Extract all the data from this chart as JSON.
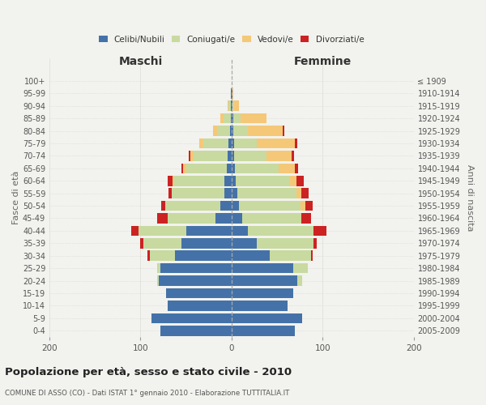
{
  "age_groups_bottom_to_top": [
    "0-4",
    "5-9",
    "10-14",
    "15-19",
    "20-24",
    "25-29",
    "30-34",
    "35-39",
    "40-44",
    "45-49",
    "50-54",
    "55-59",
    "60-64",
    "65-69",
    "70-74",
    "75-79",
    "80-84",
    "85-89",
    "90-94",
    "95-99",
    "100+"
  ],
  "birth_years_bottom_to_top": [
    "2005-2009",
    "2000-2004",
    "1995-1999",
    "1990-1994",
    "1985-1989",
    "1980-1984",
    "1975-1979",
    "1970-1974",
    "1965-1969",
    "1960-1964",
    "1955-1959",
    "1950-1954",
    "1945-1949",
    "1940-1944",
    "1935-1939",
    "1930-1934",
    "1925-1929",
    "1920-1924",
    "1915-1919",
    "1910-1914",
    "≤ 1909"
  ],
  "male": {
    "celibi": [
      78,
      88,
      70,
      72,
      80,
      78,
      62,
      55,
      50,
      18,
      12,
      8,
      8,
      5,
      4,
      3,
      2,
      1,
      1,
      1,
      0
    ],
    "coniugati": [
      0,
      0,
      0,
      0,
      2,
      4,
      28,
      42,
      52,
      52,
      60,
      58,
      55,
      45,
      38,
      28,
      14,
      8,
      2,
      0,
      0
    ],
    "vedovi": [
      0,
      0,
      0,
      0,
      0,
      0,
      0,
      0,
      0,
      0,
      1,
      0,
      2,
      3,
      3,
      4,
      4,
      3,
      1,
      0,
      0
    ],
    "divorziati": [
      0,
      0,
      0,
      0,
      0,
      0,
      2,
      3,
      8,
      12,
      4,
      3,
      5,
      2,
      2,
      0,
      0,
      0,
      0,
      0,
      0
    ]
  },
  "female": {
    "nubili": [
      70,
      78,
      62,
      68,
      72,
      68,
      42,
      28,
      18,
      12,
      8,
      6,
      5,
      4,
      3,
      3,
      2,
      2,
      1,
      1,
      0
    ],
    "coniugate": [
      0,
      0,
      0,
      0,
      6,
      16,
      45,
      62,
      72,
      65,
      68,
      65,
      58,
      48,
      35,
      25,
      16,
      8,
      2,
      0,
      0
    ],
    "vedove": [
      0,
      0,
      0,
      0,
      0,
      0,
      0,
      0,
      0,
      0,
      5,
      6,
      8,
      18,
      28,
      42,
      38,
      28,
      5,
      1,
      0
    ],
    "divorziate": [
      0,
      0,
      0,
      0,
      0,
      0,
      2,
      4,
      14,
      10,
      8,
      8,
      8,
      3,
      3,
      2,
      2,
      0,
      0,
      0,
      0
    ]
  },
  "colors": {
    "celibi": "#4472a8",
    "coniugati": "#c8daa0",
    "vedovi": "#f5c878",
    "divorziati": "#cc2222"
  },
  "xlim": [
    -200,
    200
  ],
  "title": "Popolazione per età, sesso e stato civile - 2010",
  "subtitle": "COMUNE DI ASSO (CO) - Dati ISTAT 1° gennaio 2010 - Elaborazione TUTTITALIA.IT",
  "ylabel_left": "Fasce di età",
  "ylabel_right": "Anni di nascita",
  "xlabel_left": "Maschi",
  "xlabel_right": "Femmine",
  "legend_labels": [
    "Celibi/Nubili",
    "Coniugati/e",
    "Vedovi/e",
    "Divorziati/e"
  ],
  "background_color": "#f2f2ee",
  "grid_color": "#cccccc"
}
